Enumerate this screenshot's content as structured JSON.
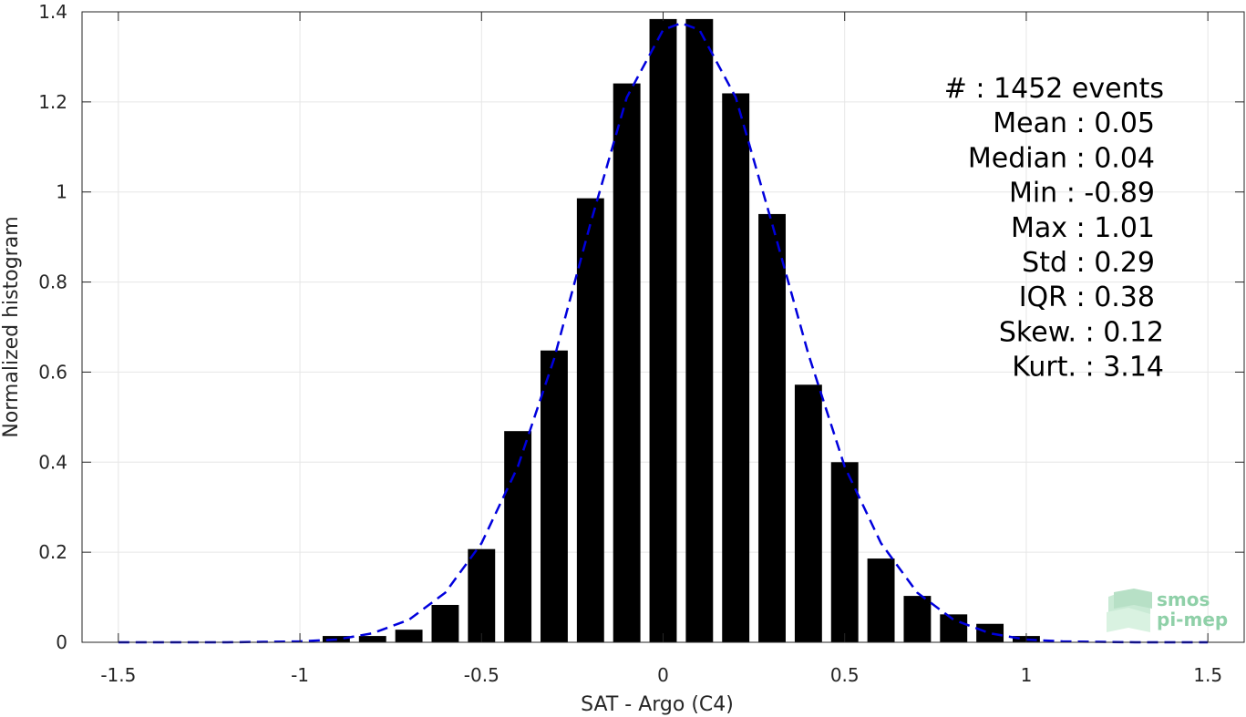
{
  "chart_data": {
    "type": "bar",
    "xlabel": "SAT - Argo (C4)",
    "ylabel": "Normalized histogram",
    "xlim": [
      -1.6,
      1.6
    ],
    "ylim": [
      0,
      1.4
    ],
    "xticks": [
      -1.5,
      -1,
      -0.5,
      0,
      0.5,
      1,
      1.5
    ],
    "xtick_labels": [
      "-1.5",
      "-1",
      "-0.5",
      "0",
      "0.5",
      "1",
      "1.5"
    ],
    "yticks": [
      0,
      0.2,
      0.4,
      0.6,
      0.8,
      1,
      1.2,
      1.4
    ],
    "ytick_labels": [
      "0",
      "0.2",
      "0.4",
      "0.6",
      "0.8",
      "1",
      "1.2",
      "1.4"
    ],
    "grid": true,
    "bar_color": "#000000",
    "bar_width": 0.075,
    "bars": {
      "x": [
        -0.9,
        -0.8,
        -0.7,
        -0.6,
        -0.5,
        -0.4,
        -0.3,
        -0.2,
        -0.1,
        0.0,
        0.1,
        0.2,
        0.3,
        0.4,
        0.5,
        0.6,
        0.7,
        0.8,
        0.9,
        1.0
      ],
      "values": [
        0.014,
        0.014,
        0.028,
        0.083,
        0.207,
        0.469,
        0.648,
        0.986,
        1.241,
        1.384,
        1.384,
        1.219,
        0.951,
        0.572,
        0.4,
        0.186,
        0.103,
        0.062,
        0.041,
        0.014
      ]
    },
    "fit_curve": {
      "style": "dashed",
      "color": "#0000dd",
      "x": [
        -1.5,
        -1.4,
        -1.3,
        -1.2,
        -1.1,
        -1.0,
        -0.9,
        -0.8,
        -0.7,
        -0.6,
        -0.5,
        -0.4,
        -0.3,
        -0.2,
        -0.1,
        0.0,
        0.05,
        0.1,
        0.2,
        0.3,
        0.4,
        0.5,
        0.6,
        0.7,
        0.8,
        0.9,
        1.0,
        1.1,
        1.2,
        1.3,
        1.4,
        1.5
      ],
      "y": [
        0.0,
        0.0,
        0.0,
        0.0,
        0.001,
        0.002,
        0.006,
        0.02,
        0.05,
        0.11,
        0.22,
        0.39,
        0.63,
        0.93,
        1.21,
        1.36,
        1.375,
        1.36,
        1.21,
        0.93,
        0.64,
        0.39,
        0.22,
        0.11,
        0.05,
        0.02,
        0.006,
        0.002,
        0.001,
        0.0,
        0.0,
        0.0
      ]
    },
    "annotations": [
      "#  : 1452 events",
      "Mean : 0.05",
      "Median : 0.04",
      "Min : -0.89",
      "Max : 1.01",
      "Std : 0.29",
      "IQR : 0.38",
      "Skew. : 0.12",
      "Kurt. : 3.14"
    ]
  },
  "logo": {
    "line1": "smos",
    "line2": "pi-mep",
    "color": "#8fd0a8"
  }
}
